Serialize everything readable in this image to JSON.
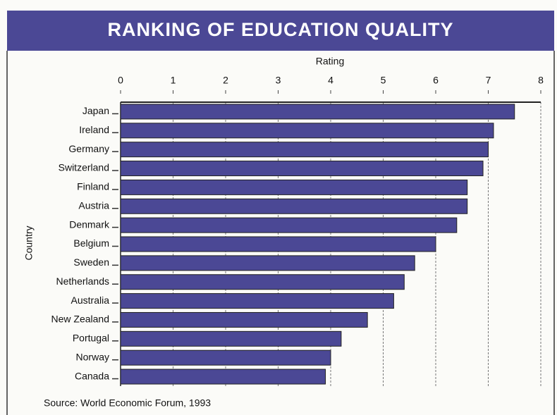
{
  "chart_data": {
    "type": "bar",
    "orientation": "horizontal",
    "title": "RANKING OF EDUCATION QUALITY",
    "x_label": "Rating",
    "y_label": "Country",
    "source": "Source: World Economic Forum, 1993",
    "categories": [
      "Japan",
      "Ireland",
      "Germany",
      "Switzerland",
      "Finland",
      "Austria",
      "Denmark",
      "Belgium",
      "Sweden",
      "Netherlands",
      "Australia",
      "New Zealand",
      "Portugal",
      "Norway",
      "Canada"
    ],
    "values": [
      7.5,
      7.1,
      7.0,
      6.9,
      6.6,
      6.6,
      6.4,
      6.0,
      5.6,
      5.4,
      5.2,
      4.7,
      4.2,
      4.0,
      3.9
    ],
    "color": "#4b4895",
    "xlim": [
      0,
      8
    ],
    "xticks": [
      0,
      1,
      2,
      3,
      4,
      5,
      6,
      7,
      8
    ],
    "grid": true
  }
}
